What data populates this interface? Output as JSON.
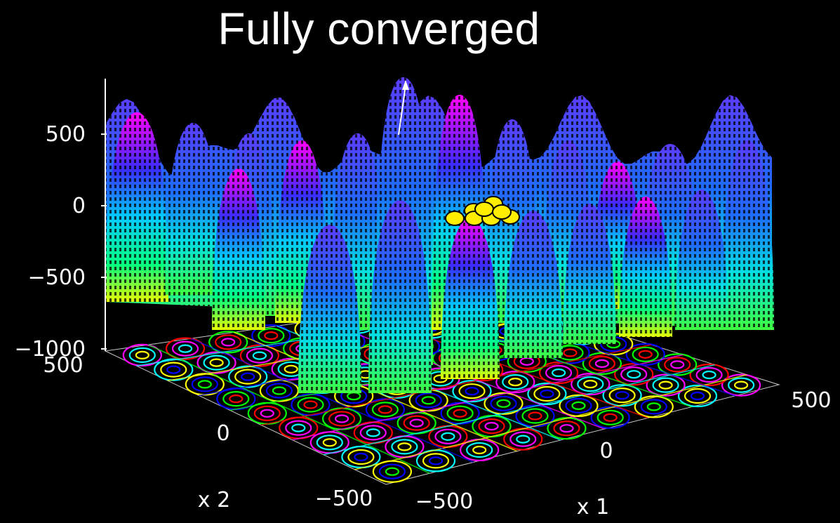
{
  "title": "Fully converged",
  "chart_data": {
    "type": "surface",
    "title": "Fully converged",
    "z_ticks": [
      "500",
      "0",
      "−500",
      "−1000"
    ],
    "x2_ticks": [
      "500",
      "0",
      "−500"
    ],
    "x1_ticks": [
      "−500",
      "0",
      "500"
    ],
    "x2_label": "x 2",
    "x1_label": "x 1",
    "x1_range": [
      -500,
      500
    ],
    "x2_range": [
      -500,
      500
    ],
    "z_range": [
      -1000,
      800
    ],
    "population_points": [
      {
        "x1": 20,
        "x2": 30
      },
      {
        "x1": 35,
        "x2": 45
      },
      {
        "x1": 50,
        "x2": 25
      },
      {
        "x1": 60,
        "x2": 60
      },
      {
        "x1": 75,
        "x2": 40
      },
      {
        "x1": 40,
        "x2": 70
      },
      {
        "x1": 55,
        "x2": 85
      },
      {
        "x1": 85,
        "x2": 65
      }
    ],
    "colors": {
      "surface_low": "#e6ff00",
      "surface_mid": "#00ffd0",
      "surface_high": "#ff00ff",
      "contour": [
        "#ff0000",
        "#00ff00",
        "#0000ff",
        "#ffff00",
        "#00ffff",
        "#ff00ff"
      ],
      "points": "#ffee00"
    }
  }
}
